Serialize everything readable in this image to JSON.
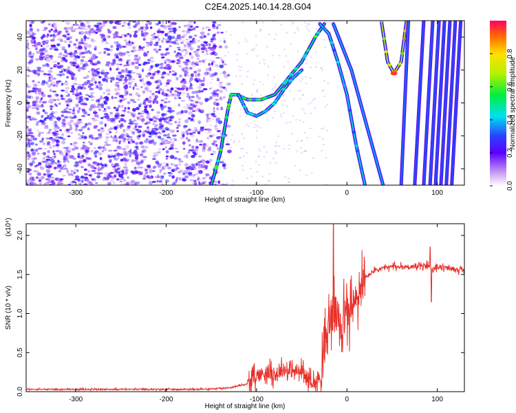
{
  "title": "C2E4.2025.140.14.28.G04",
  "colors": {
    "snr_line": "#e8302a",
    "noise_purple": "#6a2fd8",
    "axis": "#000000"
  },
  "colorbar": {
    "label": "Normalized spectral amplitude",
    "ticks": [
      "0.0",
      "0.2",
      "0.4",
      "0.6",
      "0.8"
    ],
    "tick_values": [
      0,
      0.2,
      0.4,
      0.6,
      0.8
    ],
    "range": [
      0,
      1
    ],
    "colormap": "rainbow-white-purple-blue-cyan-green-yellow-red"
  },
  "chart_data": [
    {
      "type": "heatmap",
      "xlabel": "Height of straight line (km)",
      "ylabel": "Frequency (Hz)",
      "xlim": [
        -355,
        130
      ],
      "ylim": [
        -50,
        50
      ],
      "xticks": [
        -300,
        -200,
        -100,
        0,
        100
      ],
      "yticks": [
        -40,
        -20,
        0,
        20,
        40
      ],
      "tracks": [
        {
          "points": [
            [
              -150,
              -50
            ],
            [
              -140,
              -30
            ],
            [
              -132,
              -5
            ],
            [
              -128,
              5
            ],
            [
              -122,
              5
            ],
            [
              -110,
              2
            ],
            [
              -95,
              2
            ],
            [
              -80,
              5
            ],
            [
              -65,
              15
            ],
            [
              -50,
              25
            ],
            [
              -35,
              40
            ],
            [
              -25,
              48
            ]
          ],
          "peak": 0.55
        },
        {
          "points": [
            [
              -120,
              5
            ],
            [
              -110,
              -6
            ],
            [
              -100,
              -8
            ],
            [
              -90,
              -5
            ],
            [
              -80,
              0
            ],
            [
              -70,
              8
            ],
            [
              -60,
              15
            ],
            [
              -50,
              20
            ]
          ],
          "peak": 0.45
        },
        {
          "points": [
            [
              -30,
              48
            ],
            [
              -20,
              42
            ],
            [
              -10,
              25
            ],
            [
              0,
              5
            ],
            [
              10,
              -25
            ],
            [
              20,
              -50
            ]
          ],
          "peak": 0.4
        },
        {
          "points": [
            [
              -15,
              48
            ],
            [
              5,
              20
            ],
            [
              25,
              -20
            ],
            [
              40,
              -50
            ]
          ],
          "peak": 0.3
        },
        {
          "points": [
            [
              38,
              50
            ],
            [
              45,
              25
            ],
            [
              52,
              18
            ],
            [
              60,
              25
            ],
            [
              66,
              50
            ]
          ],
          "peak": 0.85
        },
        {
          "points": [
            [
              68,
              50
            ],
            [
              60,
              -50
            ]
          ],
          "peak": 0.2
        },
        {
          "points": [
            [
              85,
              50
            ],
            [
              75,
              -50
            ]
          ],
          "peak": 0.15
        },
        {
          "points": [
            [
              95,
              50
            ],
            [
              85,
              -50
            ]
          ],
          "peak": 0.15
        },
        {
          "points": [
            [
              102,
              50
            ],
            [
              92,
              -50
            ]
          ],
          "peak": 0.15
        },
        {
          "points": [
            [
              108,
              50
            ],
            [
              98,
              -50
            ]
          ],
          "peak": 0.12
        },
        {
          "points": [
            [
              114,
              50
            ],
            [
              104,
              -50
            ]
          ],
          "peak": 0.12
        },
        {
          "points": [
            [
              120,
              50
            ],
            [
              110,
              -50
            ]
          ],
          "peak": 0.12
        },
        {
          "points": [
            [
              126,
              50
            ],
            [
              116,
              -50
            ]
          ],
          "peak": 0.1
        }
      ],
      "noise_region": {
        "x_from": -355,
        "x_to": -140,
        "level": 0.15
      }
    },
    {
      "type": "line",
      "xlabel": "Height of straight line (km)",
      "ylabel": "SNR (10 * v/v)",
      "y_multiplier": "(x10⁴)",
      "xlim": [
        -355,
        130
      ],
      "ylim": [
        0,
        2.15
      ],
      "xticks": [
        -300,
        -200,
        -100,
        0,
        100
      ],
      "yticks": [
        0.0,
        0.5,
        1.0,
        1.5,
        2.0
      ],
      "ytick_labels": [
        "0.0",
        "0.5",
        "1.0",
        "1.5",
        "2.0"
      ],
      "series": [
        {
          "x": [
            -355,
            -300,
            -250,
            -200,
            -160,
            -130,
            -110,
            -100,
            -90,
            -80,
            -70,
            -60,
            -50,
            -45,
            -40,
            -35,
            -30,
            -25,
            -22,
            -20,
            -15,
            -10,
            -5,
            0,
            5,
            10,
            15,
            20,
            30,
            40,
            50,
            60,
            70,
            80,
            90,
            95,
            100,
            110,
            120,
            130
          ],
          "y": [
            0.03,
            0.03,
            0.03,
            0.03,
            0.03,
            0.05,
            0.1,
            0.2,
            0.25,
            0.22,
            0.28,
            0.26,
            0.25,
            0.18,
            0.15,
            0.1,
            0.2,
            0.5,
            0.7,
            0.9,
            1.0,
            0.95,
            0.9,
            1.0,
            1.05,
            1.15,
            1.3,
            1.45,
            1.55,
            1.58,
            1.6,
            1.6,
            1.6,
            1.6,
            1.62,
            1.55,
            1.6,
            1.58,
            1.57,
            1.55
          ]
        }
      ]
    }
  ]
}
